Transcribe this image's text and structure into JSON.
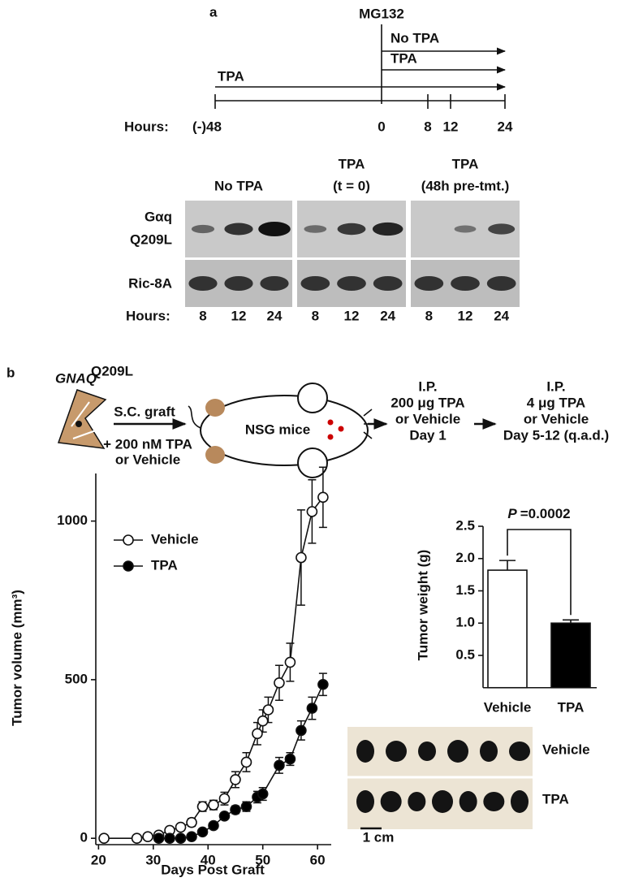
{
  "panel_a": {
    "label": "a",
    "timeline": {
      "event": "MG132",
      "arrows": [
        "No TPA",
        "TPA",
        "TPA"
      ],
      "hours_label": "Hours:",
      "hours": [
        "(-)48",
        "0",
        "8",
        "12",
        "24"
      ]
    },
    "blot": {
      "columns": [
        [
          "No TPA"
        ],
        [
          "TPA",
          "(t = 0)"
        ],
        [
          "TPA",
          "(48h pre-tmt.)"
        ]
      ],
      "rows": [
        [
          "Gαq",
          "Q209L"
        ],
        [
          "Ric-8A"
        ]
      ],
      "hours_label": "Hours:",
      "hours": [
        [
          "8",
          "12",
          "24"
        ],
        [
          "8",
          "12",
          "24"
        ],
        [
          "8",
          "12",
          "24"
        ]
      ]
    }
  },
  "panel_b": {
    "label": "b",
    "gene": "GNAQ",
    "gene_superscript": "Q209L",
    "step1": [
      "S.C. graft",
      "+ 200 nM TPA",
      "or Vehicle"
    ],
    "mice": "NSG mice",
    "step2": [
      "I.P.",
      "200 μg TPA",
      "or Vehicle",
      "Day 1"
    ],
    "step3": [
      "I.P.",
      "4 μg TPA",
      "or Vehicle",
      "Day 5-12 (q.a.d.)"
    ],
    "photo": {
      "rows": [
        "Vehicle",
        "TPA"
      ],
      "scale": "1 cm"
    }
  },
  "chart_data": [
    {
      "type": "line",
      "x_label": "Days Post Graft",
      "y_label": "Tumor volume (mm³)",
      "xlim": [
        19.5,
        62.5
      ],
      "ylim": [
        -20,
        1150
      ],
      "xticks": [
        20,
        30,
        40,
        50,
        60
      ],
      "yticks": [
        0,
        500,
        1000
      ],
      "series": [
        {
          "name": "Vehicle",
          "color": "#ffffff",
          "x": [
            21,
            27,
            29,
            31,
            33,
            35,
            37,
            39,
            41,
            43,
            45,
            47,
            49,
            50,
            51,
            53,
            55,
            57,
            59,
            61
          ],
          "values": [
            0,
            0,
            5,
            10,
            25,
            35,
            50,
            100,
            105,
            125,
            185,
            240,
            330,
            370,
            405,
            490,
            555,
            885,
            1030,
            1075
          ],
          "errors": [
            0,
            0,
            3,
            5,
            8,
            10,
            12,
            15,
            15,
            20,
            25,
            30,
            35,
            35,
            40,
            55,
            60,
            150,
            100,
            95
          ]
        },
        {
          "name": "TPA",
          "color": "#000000",
          "x": [
            31,
            33,
            35,
            37,
            39,
            41,
            43,
            45,
            47,
            49,
            50,
            53,
            55,
            57,
            59,
            61
          ],
          "values": [
            0,
            0,
            0,
            5,
            20,
            40,
            70,
            90,
            100,
            130,
            140,
            230,
            250,
            340,
            410,
            485
          ],
          "errors": [
            0,
            0,
            2,
            3,
            5,
            8,
            10,
            12,
            15,
            18,
            20,
            25,
            20,
            30,
            35,
            35
          ]
        }
      ]
    },
    {
      "type": "bar",
      "y_label": "Tumor weight (g)",
      "categories": [
        "Vehicle",
        "TPA"
      ],
      "values": [
        1.82,
        1.0
      ],
      "errors": [
        0.15,
        0.05
      ],
      "colors": [
        "#ffffff",
        "#000000"
      ],
      "ylim": [
        0,
        2.5
      ],
      "yticks": [
        0.5,
        1.0,
        1.5,
        2.0,
        2.5
      ],
      "annotation": {
        "italic": "P",
        "text": "=0.0002"
      }
    }
  ]
}
